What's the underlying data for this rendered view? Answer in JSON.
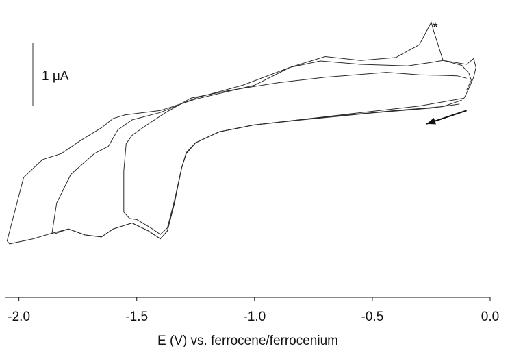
{
  "chart_data": {
    "type": "line",
    "xlabel": "E (V) vs. ferrocene/ferrocenium",
    "ylabel": "",
    "xlim": [
      -2.06,
      0.0
    ],
    "ylim": [
      -6.0,
      0.0
    ],
    "x_ticks": [
      -2.0,
      -1.5,
      -1.0,
      -0.5,
      0.0
    ],
    "x_tick_labels": [
      "-2.0",
      "-1.5",
      "-1.0",
      "-0.5",
      "0.0"
    ],
    "scale_bar": {
      "label": "1 μA",
      "value_uA": 1
    },
    "annotations": [
      {
        "text": "*",
        "x": -0.25,
        "y": -0.5
      }
    ],
    "arrow": {
      "direction": "negative",
      "from": [
        -0.1,
        -2.23
      ],
      "to": [
        -0.27,
        -2.5
      ]
    },
    "series": [
      {
        "points": [
          [
            -0.12,
            -2.02
          ],
          [
            -0.2,
            -2.15
          ],
          [
            -0.4,
            -2.23
          ],
          [
            -0.7,
            -2.36
          ],
          [
            -1.0,
            -2.52
          ],
          [
            -1.15,
            -2.66
          ],
          [
            -1.25,
            -2.88
          ],
          [
            -1.29,
            -3.08
          ],
          [
            -1.31,
            -3.4
          ],
          [
            -1.34,
            -4.05
          ],
          [
            -1.37,
            -4.6
          ],
          [
            -1.4,
            -4.73
          ],
          [
            -1.44,
            -4.6
          ],
          [
            -1.5,
            -4.43
          ],
          [
            -1.53,
            -4.41
          ],
          [
            -1.555,
            -4.28
          ],
          [
            -1.555,
            -3.45
          ],
          [
            -1.545,
            -2.9
          ],
          [
            -1.52,
            -2.73
          ],
          [
            -1.46,
            -2.53
          ],
          [
            -1.38,
            -2.28
          ],
          [
            -1.27,
            -1.98
          ],
          [
            -1.1,
            -1.82
          ],
          [
            -0.9,
            -1.67
          ],
          [
            -0.7,
            -1.56
          ],
          [
            -0.44,
            -1.46
          ],
          [
            -0.3,
            -1.51
          ],
          [
            -0.14,
            -1.53
          ],
          [
            -0.1,
            -1.58
          ]
        ]
      },
      {
        "points": [
          [
            -0.11,
            -1.98
          ],
          [
            -0.3,
            -2.14
          ],
          [
            -0.6,
            -2.3
          ],
          [
            -1.0,
            -2.52
          ],
          [
            -1.15,
            -2.66
          ],
          [
            -1.25,
            -2.88
          ],
          [
            -1.29,
            -3.1
          ],
          [
            -1.31,
            -3.4
          ],
          [
            -1.34,
            -4.1
          ],
          [
            -1.37,
            -4.66
          ],
          [
            -1.4,
            -4.82
          ],
          [
            -1.45,
            -4.66
          ],
          [
            -1.52,
            -4.5
          ],
          [
            -1.6,
            -4.62
          ],
          [
            -1.65,
            -4.78
          ],
          [
            -1.72,
            -4.74
          ],
          [
            -1.79,
            -4.62
          ],
          [
            -1.85,
            -4.72
          ],
          [
            -1.86,
            -4.72
          ],
          [
            -1.84,
            -4.1
          ],
          [
            -1.78,
            -3.52
          ],
          [
            -1.68,
            -3.1
          ],
          [
            -1.62,
            -2.95
          ],
          [
            -1.58,
            -2.62
          ],
          [
            -1.52,
            -2.42
          ],
          [
            -1.4,
            -2.27
          ],
          [
            -1.25,
            -1.98
          ],
          [
            -1.05,
            -1.72
          ],
          [
            -0.85,
            -1.36
          ],
          [
            -0.72,
            -1.23
          ],
          [
            -0.55,
            -1.3
          ],
          [
            -0.35,
            -1.33
          ],
          [
            -0.25,
            -1.26
          ],
          [
            -0.2,
            -1.22
          ],
          [
            -0.12,
            -1.32
          ],
          [
            -0.09,
            -1.48
          ],
          [
            -0.08,
            -1.62
          ],
          [
            -0.09,
            -1.72
          ],
          [
            -0.1,
            -1.82
          ]
        ]
      },
      {
        "points": [
          [
            -0.13,
            -2.1
          ],
          [
            -0.25,
            -2.18
          ],
          [
            -0.5,
            -2.28
          ],
          [
            -0.8,
            -2.42
          ],
          [
            -1.0,
            -2.52
          ],
          [
            -1.15,
            -2.66
          ],
          [
            -1.25,
            -2.88
          ],
          [
            -1.29,
            -3.1
          ],
          [
            -1.31,
            -3.4
          ],
          [
            -1.34,
            -4.1
          ],
          [
            -1.37,
            -4.66
          ],
          [
            -1.4,
            -4.82
          ],
          [
            -1.45,
            -4.66
          ],
          [
            -1.52,
            -4.5
          ],
          [
            -1.6,
            -4.62
          ],
          [
            -1.65,
            -4.78
          ],
          [
            -1.72,
            -4.74
          ],
          [
            -1.79,
            -4.62
          ],
          [
            -1.87,
            -4.72
          ],
          [
            -1.94,
            -4.82
          ],
          [
            -2.04,
            -4.92
          ],
          [
            -2.05,
            -4.86
          ],
          [
            -1.98,
            -3.58
          ],
          [
            -1.9,
            -3.22
          ],
          [
            -1.82,
            -3.1
          ],
          [
            -1.74,
            -2.84
          ],
          [
            -1.65,
            -2.58
          ],
          [
            -1.6,
            -2.39
          ],
          [
            -1.55,
            -2.32
          ],
          [
            -1.4,
            -2.23
          ],
          [
            -1.25,
            -2.0
          ],
          [
            -1.0,
            -1.72
          ],
          [
            -0.85,
            -1.36
          ],
          [
            -0.7,
            -1.14
          ],
          [
            -0.55,
            -1.22
          ],
          [
            -0.4,
            -1.16
          ],
          [
            -0.3,
            -0.9
          ],
          [
            -0.25,
            -0.45
          ],
          [
            -0.24,
            -0.62
          ],
          [
            -0.2,
            -1.22
          ],
          [
            -0.1,
            -1.3
          ],
          [
            -0.07,
            -1.18
          ],
          [
            -0.06,
            -1.36
          ],
          [
            -0.07,
            -1.56
          ],
          [
            -0.09,
            -1.78
          ],
          [
            -0.11,
            -1.98
          ]
        ]
      }
    ]
  }
}
